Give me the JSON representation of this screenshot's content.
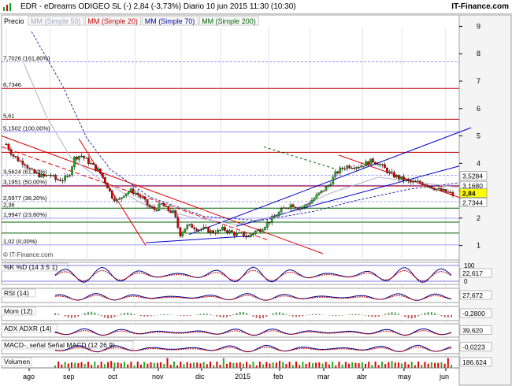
{
  "header": {
    "title": "EDR - eDreams ODIGEO SL (-)   2,84 (-3,73%)   Diario  10 jun 2015 11:30 (10:30)",
    "brand": "IT-Finance.com"
  },
  "price_panel": {
    "label": "Precio",
    "indicators": [
      {
        "label": "MM (Simple 50)",
        "color": "#a0a0c0"
      },
      {
        "label": "MM (Simple 20)",
        "color": "#c00000"
      },
      {
        "label": "MM (Simple 70)",
        "color": "#000090"
      },
      {
        "label": "MM (Simple 200)",
        "color": "#006000"
      }
    ],
    "watermark": "© IT-Finance.com"
  },
  "colors": {
    "up_candle": "#20b020",
    "down_candle": "#e00000",
    "fib_line": "#8080ff",
    "resistance": "#c00000",
    "support": "#006000",
    "channel_blue": "#0000cc",
    "channel_red": "#e00000"
  },
  "chart_data": [
    {
      "type": "candlestick",
      "title": "EDR - eDreams ODIGEO SL (-)",
      "last_price": "2,84",
      "change": "-3,73%",
      "x_tick_labels": [
        "ago",
        "sep",
        "oct",
        "nov",
        "dic",
        "2015",
        "feb",
        "mar",
        "abr",
        "may",
        "jun"
      ],
      "y_axis": {
        "min": 0.7,
        "max": 9.1,
        "ticks": [
          1,
          2,
          3,
          4,
          5,
          6,
          7,
          8,
          9
        ]
      },
      "price_tags": [
        {
          "label": "3,5284",
          "value": 3.5284
        },
        {
          "label": "3,1680",
          "value": 3.168
        },
        {
          "label": "2,84",
          "value": 2.84
        },
        {
          "label": "2,7344",
          "value": 2.7344
        }
      ],
      "level_lines": [
        {
          "label": "7,7026 (161,80%)",
          "value": 7.7026,
          "kind": "fib"
        },
        {
          "label": "6,7346",
          "value": 6.7346,
          "kind": "res"
        },
        {
          "label": "5,61",
          "value": 5.61,
          "kind": "res"
        },
        {
          "label": "5,1502 (100,00%)",
          "value": 5.1502,
          "kind": "fib"
        },
        {
          "label": "",
          "value": 4.4,
          "kind": "res"
        },
        {
          "label": "3,5624 (61,80%)",
          "value": 3.5624,
          "kind": "fib"
        },
        {
          "label": "3,1951 (50,00%)",
          "value": 3.1951,
          "kind": "fib"
        },
        {
          "label": "",
          "value": 3.17,
          "kind": "res"
        },
        {
          "label": "2,5977 (38,20%)",
          "value": 2.5977,
          "kind": "fib"
        },
        {
          "label": "2,36",
          "value": 2.36,
          "kind": "sup"
        },
        {
          "label": "1,9947 (23,60%)",
          "value": 1.9947,
          "kind": "fib"
        },
        {
          "label": "",
          "value": 1.85,
          "kind": "sup"
        },
        {
          "label": "",
          "value": 1.45,
          "kind": "sup"
        },
        {
          "label": "1,02 (0,00%)",
          "value": 1.02,
          "kind": "fib"
        }
      ],
      "close_series_approx": [
        4.7,
        4.3,
        4.1,
        4.0,
        3.7,
        3.6,
        3.5,
        3.6,
        3.4,
        3.4,
        3.5,
        4.2,
        4.3,
        4.1,
        3.9,
        3.7,
        3.3,
        2.8,
        2.6,
        2.9,
        3.0,
        2.9,
        2.7,
        2.4,
        2.3,
        2.5,
        2.3,
        2.2,
        1.4,
        1.7,
        1.7,
        1.6,
        1.6,
        1.5,
        1.5,
        1.6,
        1.5,
        1.4,
        1.4,
        1.3,
        1.5,
        1.6,
        1.8,
        2.0,
        2.2,
        2.4,
        2.5,
        2.4,
        2.4,
        2.6,
        2.8,
        3.0,
        3.2,
        3.6,
        3.8,
        3.9,
        3.9,
        3.9,
        4.0,
        4.1,
        4.0,
        3.8,
        3.6,
        3.5,
        3.4,
        3.3,
        3.3,
        3.3,
        3.2,
        3.1,
        3.0,
        2.95,
        2.84
      ]
    },
    {
      "type": "line",
      "name": "%K  %D (14 3 5 1)",
      "y_ticks": [
        100,
        0
      ],
      "last_value": "22,617"
    },
    {
      "type": "line",
      "name": "RSI (14)",
      "y_ticks": [],
      "last_value": "27,672"
    },
    {
      "type": "area",
      "name": "Mom (12)",
      "last_value": "-0,2800"
    },
    {
      "type": "line",
      "name": "ADX  ADXR (14)",
      "last_value": "39,620"
    },
    {
      "type": "line",
      "name": "MACD-, señal  Señal  MACD (12 26 9)",
      "last_value": "-0,0223"
    },
    {
      "type": "bar",
      "name": "Volumen",
      "last_value": "186.624"
    }
  ]
}
